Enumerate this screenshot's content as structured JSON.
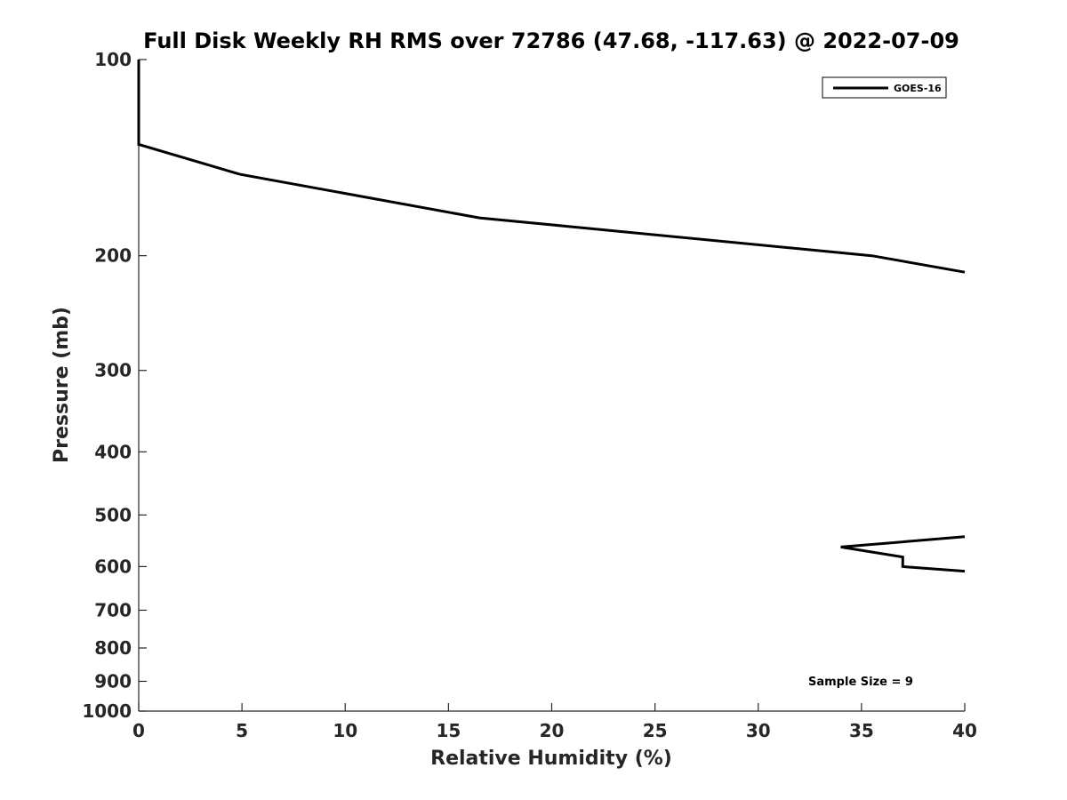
{
  "chart_data": {
    "type": "line",
    "title": "Full Disk Weekly RH RMS over 72786 (47.68, -117.63) @ 2022-07-09",
    "xlabel": "Relative Humidity (%)",
    "ylabel": "Pressure (mb)",
    "xlim": [
      0,
      40
    ],
    "ylim": [
      100,
      1000
    ],
    "yscale": "log",
    "y_reversed": true,
    "grid": false,
    "xticks": [
      0,
      5,
      10,
      15,
      20,
      25,
      30,
      35,
      40
    ],
    "xtick_labels": [
      "0",
      "5",
      "10",
      "15",
      "20",
      "25",
      "30",
      "35",
      "40"
    ],
    "yticks": [
      100,
      200,
      300,
      400,
      500,
      600,
      700,
      800,
      900,
      1000
    ],
    "ytick_labels": [
      "100",
      "200",
      "300",
      "400",
      "500",
      "600",
      "700",
      "800",
      "900",
      "1000"
    ],
    "legend_position": "top-right",
    "series": [
      {
        "name": "GOES-16",
        "color": "#000000",
        "segments": [
          [
            {
              "x": 0,
              "y": 100
            },
            {
              "x": 0,
              "y": 125
            },
            {
              "x": 0,
              "y": 135
            },
            {
              "x": 4.9,
              "y": 150
            },
            {
              "x": 16.5,
              "y": 175
            },
            {
              "x": 35.5,
              "y": 200
            },
            {
              "x": 40,
              "y": 212
            }
          ],
          [
            {
              "x": 40,
              "y": 540
            },
            {
              "x": 34,
              "y": 560
            },
            {
              "x": 37,
              "y": 580
            },
            {
              "x": 37,
              "y": 600
            },
            {
              "x": 40,
              "y": 610
            }
          ]
        ]
      }
    ],
    "annotation": "Sample Size = 9"
  }
}
